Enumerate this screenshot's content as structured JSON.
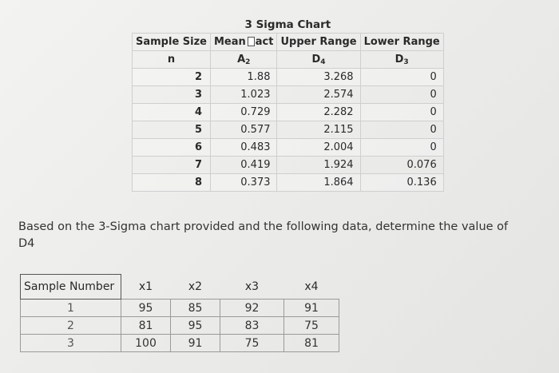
{
  "sigma_chart": {
    "title": "3 Sigma Chart",
    "headers": [
      "Sample Size",
      "Mean",
      "act",
      "Upper Range",
      "Lower Range"
    ],
    "symbols": {
      "n": "n",
      "a": "A",
      "a_sub": "2",
      "d4": "D",
      "d4_sub": "4",
      "d3": "D",
      "d3_sub": "3"
    },
    "rows": [
      {
        "n": "2",
        "a2": "1.88",
        "d4": "3.268",
        "d3": "0"
      },
      {
        "n": "3",
        "a2": "1.023",
        "d4": "2.574",
        "d3": "0"
      },
      {
        "n": "4",
        "a2": "0.729",
        "d4": "2.282",
        "d3": "0"
      },
      {
        "n": "5",
        "a2": "0.577",
        "d4": "2.115",
        "d3": "0"
      },
      {
        "n": "6",
        "a2": "0.483",
        "d4": "2.004",
        "d3": "0"
      },
      {
        "n": "7",
        "a2": "0.419",
        "d4": "1.924",
        "d3": "0.076"
      },
      {
        "n": "8",
        "a2": "0.373",
        "d4": "1.864",
        "d3": "0.136"
      }
    ]
  },
  "question": {
    "text": "Based on the 3-Sigma chart provided and the following data, determine the value of",
    "target": "D4"
  },
  "samples": {
    "headers": [
      "Sample Number",
      "x1",
      "x2",
      "x3",
      "x4"
    ],
    "rows": [
      [
        "1",
        "95",
        "85",
        "92",
        "91"
      ],
      [
        "2",
        "81",
        "95",
        "83",
        "75"
      ],
      [
        "3",
        "100",
        "91",
        "75",
        "81"
      ]
    ]
  }
}
